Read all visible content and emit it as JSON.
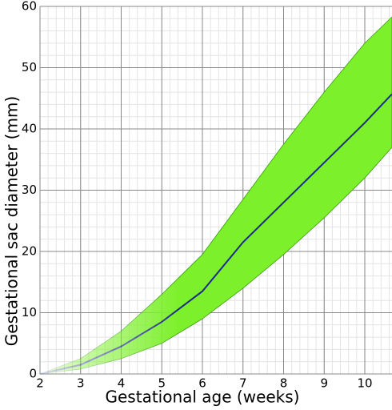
{
  "chart_data": {
    "type": "line",
    "x_label": "Gestational age (weeks)",
    "y_label": "Gestational sac diameter (mm)",
    "x": [
      2,
      3,
      4,
      5,
      6,
      6.5,
      7,
      8,
      9,
      10,
      10.67
    ],
    "series": [
      {
        "color": "#1c2a8c",
        "values": [
          0,
          1.5,
          4.5,
          8.5,
          13.5,
          17.5,
          21.5,
          28,
          34.5,
          41,
          45.7
        ]
      }
    ],
    "band": {
      "color": "#7cf02a",
      "lower": [
        0,
        0.8,
        2.5,
        5,
        9,
        11.5,
        14,
        19.5,
        25.5,
        32,
        37
      ],
      "upper": [
        0,
        2.5,
        7,
        13,
        19.5,
        24,
        28.5,
        37.5,
        46,
        54,
        58.3
      ]
    },
    "xlim": [
      2,
      10.67
    ],
    "ylim": [
      0,
      60
    ],
    "xticks": [
      2,
      3,
      4,
      5,
      6,
      7,
      8,
      9,
      10
    ],
    "yticks": [
      0,
      10,
      20,
      30,
      40,
      50,
      60
    ],
    "grid": true,
    "minor_grid": true
  }
}
